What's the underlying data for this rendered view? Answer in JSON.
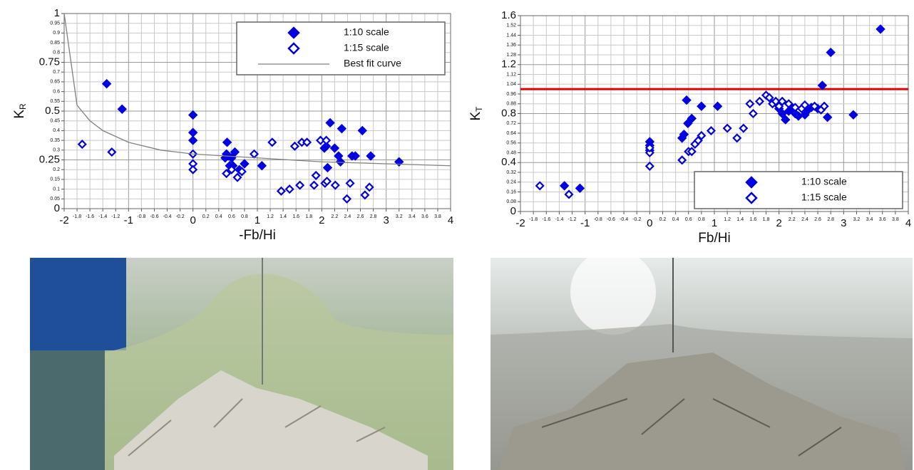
{
  "chart_data": [
    {
      "type": "scatter",
      "x_label": "-Fb/Hi",
      "y_label": "K",
      "y_label_sub": "R",
      "xlim": [
        -2,
        4
      ],
      "ylim": [
        0,
        1
      ],
      "xticks": [
        -2,
        -1,
        0,
        1,
        2,
        3,
        4
      ],
      "xminorticks": [
        -1.8,
        -1.6,
        -1.4,
        -1.2,
        -0.8,
        -0.6,
        -0.4,
        -0.2,
        0.2,
        0.4,
        0.6,
        0.8,
        1.2,
        1.4,
        1.6,
        1.8,
        2.2,
        2.4,
        2.6,
        2.8,
        3.2,
        3.4,
        3.6,
        3.8
      ],
      "yticks": [
        0,
        0.25,
        0.5,
        0.75,
        1
      ],
      "yminorticks": [
        0.05,
        0.1,
        0.15,
        0.2,
        0.3,
        0.35,
        0.4,
        0.45,
        0.55,
        0.6,
        0.65,
        0.7,
        0.8,
        0.85,
        0.9,
        0.95
      ],
      "grid": true,
      "legend": "upper right",
      "series": [
        {
          "name": "1:10 scale",
          "color": "#0000e0",
          "marker": "filled",
          "x": [
            -1.34,
            -1.1,
            0,
            0,
            0,
            0.53,
            0.52,
            0.5,
            0.55,
            0.6,
            0.65,
            0.57,
            0.62,
            0.8,
            0.72,
            1.07,
            2.13,
            2.31,
            2.04,
            2.07,
            2.2,
            2.26,
            2.29,
            2.09,
            2.47,
            2.52,
            2.63,
            2.76,
            3.2
          ],
          "values": [
            0.64,
            0.51,
            0.48,
            0.39,
            0.35,
            0.34,
            0.28,
            0.26,
            0.27,
            0.26,
            0.29,
            0.22,
            0.22,
            0.23,
            0.2,
            0.22,
            0.44,
            0.41,
            0.31,
            0.32,
            0.31,
            0.27,
            0.24,
            0.21,
            0.27,
            0.27,
            0.4,
            0.27,
            0.24
          ]
        },
        {
          "name": "1:15 scale",
          "color": "#0000e0",
          "marker": "hollow",
          "x": [
            -1.72,
            -1.26,
            0,
            0,
            0,
            0.52,
            0.6,
            0.69,
            0.76,
            0.95,
            1.23,
            1.37,
            1.5,
            1.58,
            1.66,
            1.69,
            1.77,
            1.88,
            1.91,
            1.98,
            2.07,
            2.05,
            2.08,
            2.21,
            2.39,
            2.44,
            2.67,
            2.74
          ],
          "values": [
            0.33,
            0.29,
            0.28,
            0.23,
            0.2,
            0.18,
            0.2,
            0.16,
            0.19,
            0.28,
            0.34,
            0.09,
            0.1,
            0.32,
            0.12,
            0.34,
            0.34,
            0.12,
            0.17,
            0.35,
            0.35,
            0.13,
            0.14,
            0.12,
            0.05,
            0.13,
            0.07,
            0.11
          ]
        },
        {
          "name": "Best fit curve",
          "color": "#808080",
          "marker": "line",
          "x": [
            -2,
            -1.8,
            -1.6,
            -1.4,
            -1.2,
            -1,
            -0.5,
            0,
            1,
            2,
            3,
            4
          ],
          "values": [
            1,
            0.53,
            0.45,
            0.4,
            0.37,
            0.34,
            0.3,
            0.28,
            0.26,
            0.24,
            0.23,
            0.22
          ]
        }
      ]
    },
    {
      "type": "scatter",
      "x_label": "Fb/Hi",
      "y_label": "K",
      "y_label_sub": "T",
      "xlim": [
        -2,
        4
      ],
      "ylim": [
        0,
        1.6
      ],
      "xticks": [
        -2,
        -1,
        0,
        1,
        2,
        3,
        4
      ],
      "xminorticks": [
        -1.8,
        -1.6,
        -1.4,
        -1.2,
        -0.8,
        -0.6,
        -0.4,
        -0.2,
        0.2,
        0.4,
        0.6,
        0.8,
        1.2,
        1.4,
        1.6,
        1.8,
        2.2,
        2.4,
        2.6,
        2.8,
        3.2,
        3.4,
        3.6,
        3.8
      ],
      "yticks": [
        0,
        0.4,
        0.8,
        1.2,
        1.6
      ],
      "yminorticks": [
        0.08,
        0.16,
        0.24,
        0.32,
        0.48,
        0.56,
        0.64,
        0.72,
        0.88,
        0.96,
        1.04,
        1.12,
        1.28,
        1.36,
        1.44,
        1.52
      ],
      "grid": true,
      "legend": "lower right",
      "reference_lines": [
        {
          "y": 1,
          "color": "#e00000"
        }
      ],
      "series": [
        {
          "name": "1:10 scale",
          "color": "#0000e0",
          "marker": "filled",
          "x": [
            -1.32,
            -1.08,
            0,
            0,
            0,
            0.5,
            0.53,
            0.57,
            0.59,
            0.65,
            0.8,
            1.05,
            2.0,
            2.05,
            2.1,
            2.15,
            2.2,
            2.25,
            2.3,
            2.4,
            2.45,
            2.5,
            2.6,
            2.67,
            2.75,
            2.8,
            3.15,
            3.57
          ],
          "values": [
            0.21,
            0.19,
            0.57,
            0.54,
            0.5,
            0.6,
            0.63,
            0.91,
            0.72,
            0.76,
            0.86,
            0.86,
            0.84,
            0.8,
            0.75,
            0.82,
            0.85,
            0.8,
            0.78,
            0.79,
            0.83,
            0.85,
            0.84,
            1.03,
            0.77,
            1.3,
            0.79,
            1.49
          ]
        },
        {
          "name": "1:15 scale",
          "color": "#0000e0",
          "marker": "hollow",
          "x": [
            -1.7,
            -1.25,
            0,
            0,
            0,
            0.5,
            0.6,
            0.65,
            0.7,
            0.75,
            0.8,
            0.95,
            1.2,
            1.35,
            1.45,
            1.55,
            1.6,
            1.7,
            1.8,
            1.85,
            1.9,
            1.95,
            2.0,
            2.05,
            2.15,
            2.25,
            2.35,
            2.4,
            2.55,
            2.65,
            2.7
          ],
          "values": [
            0.21,
            0.14,
            0.37,
            0.48,
            0.52,
            0.42,
            0.49,
            0.49,
            0.55,
            0.58,
            0.62,
            0.66,
            0.68,
            0.6,
            0.68,
            0.88,
            0.8,
            0.9,
            0.95,
            0.93,
            0.88,
            0.9,
            0.86,
            0.9,
            0.88,
            0.85,
            0.84,
            0.87,
            0.86,
            0.83,
            0.86
          ]
        }
      ]
    }
  ]
}
